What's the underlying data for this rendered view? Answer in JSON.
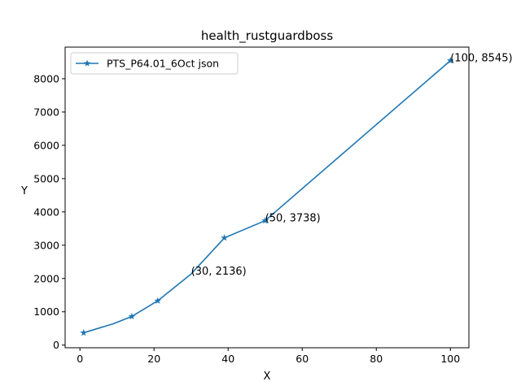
{
  "chart_data": {
    "type": "line",
    "title": "health_rustguardboss",
    "xlabel": "X",
    "ylabel": "Y",
    "xlim": [
      -4,
      105
    ],
    "ylim": [
      -80,
      8950
    ],
    "xticks": [
      0,
      20,
      40,
      60,
      80,
      100
    ],
    "yticks": [
      0,
      1000,
      2000,
      3000,
      4000,
      5000,
      6000,
      7000,
      8000
    ],
    "grid": false,
    "legend_position": "top-left",
    "series": [
      {
        "name": "PTS_P64.01_6Oct json",
        "color": "#1f77b4",
        "marker": "star",
        "points": [
          {
            "x": 1,
            "y": 370,
            "marker": true
          },
          {
            "x": 9,
            "y": 640,
            "marker": false
          },
          {
            "x": 14,
            "y": 860,
            "marker": true
          },
          {
            "x": 21,
            "y": 1330,
            "marker": true
          },
          {
            "x": 30,
            "y": 2136,
            "marker": false
          },
          {
            "x": 39,
            "y": 3220,
            "marker": true
          },
          {
            "x": 50,
            "y": 3738,
            "marker": true
          },
          {
            "x": 100,
            "y": 8545,
            "marker": true
          }
        ]
      }
    ],
    "annotations": [
      {
        "x": 30,
        "y": 2136,
        "text": "(30, 2136)"
      },
      {
        "x": 50,
        "y": 3738,
        "text": "(50, 3738)"
      },
      {
        "x": 100,
        "y": 8545,
        "text": "(100, 8545)"
      }
    ]
  }
}
